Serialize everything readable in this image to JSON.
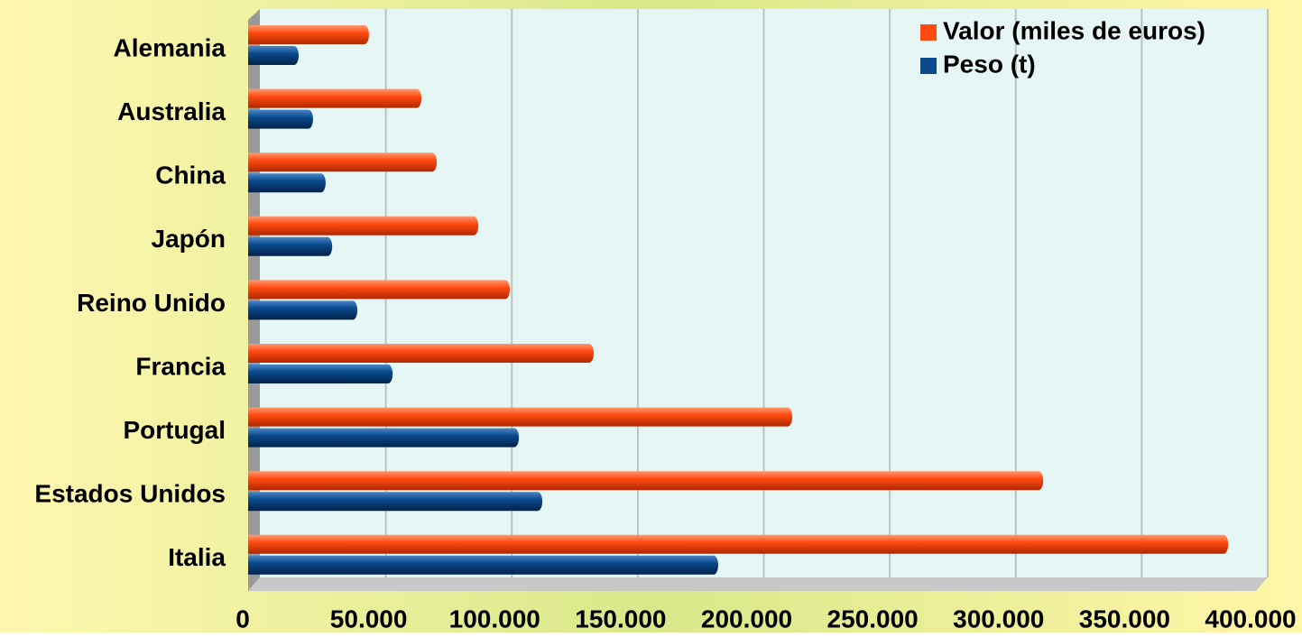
{
  "chart_data": {
    "type": "bar",
    "orientation": "horizontal",
    "categories": [
      "Alemania",
      "Australia",
      "China",
      "Japón",
      "Reino Unido",
      "Francia",
      "Portugal",
      "Estados Unidos",
      "Italia"
    ],
    "series": [
      {
        "name": "Valor (miles de euros)",
        "color": "#ff4a12",
        "values": [
          47600,
          68400,
          74500,
          91000,
          103500,
          136800,
          215600,
          315200,
          388600
        ]
      },
      {
        "name": "Peso (t)",
        "color": "#0a4a8c",
        "values": [
          19700,
          25400,
          30400,
          33000,
          43000,
          57000,
          107100,
          116400,
          186200
        ]
      }
    ],
    "xlim": [
      0,
      400000
    ],
    "xticks": [
      0,
      {
        "value": 50000,
        "label": "50.000"
      },
      {
        "value": 100000,
        "label": "100.000"
      },
      {
        "value": 150000,
        "label": "150.000"
      },
      {
        "value": 200000,
        "label": "200.000"
      },
      {
        "value": 250000,
        "label": "250.000"
      },
      {
        "value": 300000,
        "label": "300.000"
      },
      {
        "value": 350000,
        "label": "350.000"
      },
      {
        "value": 400000,
        "label": "400.000"
      }
    ],
    "grid": true,
    "legend": "top-right"
  }
}
